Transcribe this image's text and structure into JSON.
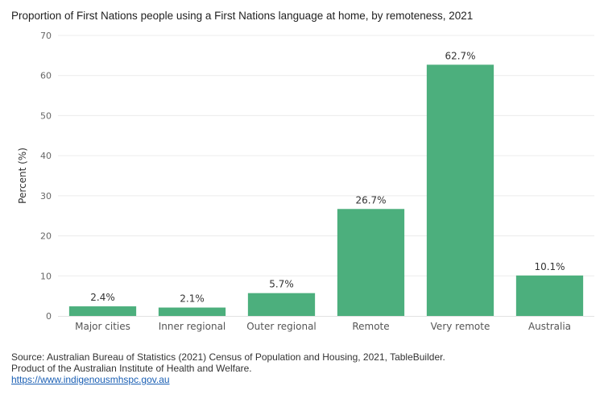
{
  "chart_data": {
    "type": "bar",
    "title": "Proportion of First Nations people using a First Nations language at home, by remoteness, 2021",
    "xlabel": "",
    "ylabel": "Percent (%)",
    "ylim": [
      0,
      70
    ],
    "yticks": [
      0,
      10,
      20,
      30,
      40,
      50,
      60,
      70
    ],
    "categories": [
      "Major cities",
      "Inner regional",
      "Outer regional",
      "Remote",
      "Very remote",
      "Australia"
    ],
    "values": [
      2.4,
      2.1,
      5.7,
      26.7,
      62.7,
      10.1
    ],
    "data_labels": [
      "2.4%",
      "2.1%",
      "5.7%",
      "26.7%",
      "62.7%",
      "10.1%"
    ],
    "bar_color": "#4caf7d",
    "grid": true
  },
  "footer": {
    "source": "Source: Australian Bureau of Statistics (2021) Census of Population and Housing, 2021, TableBuilder.",
    "product": "Product of the Australian Institute of Health and Welfare.",
    "link": "https://www.indigenousmhspc.gov.au"
  }
}
